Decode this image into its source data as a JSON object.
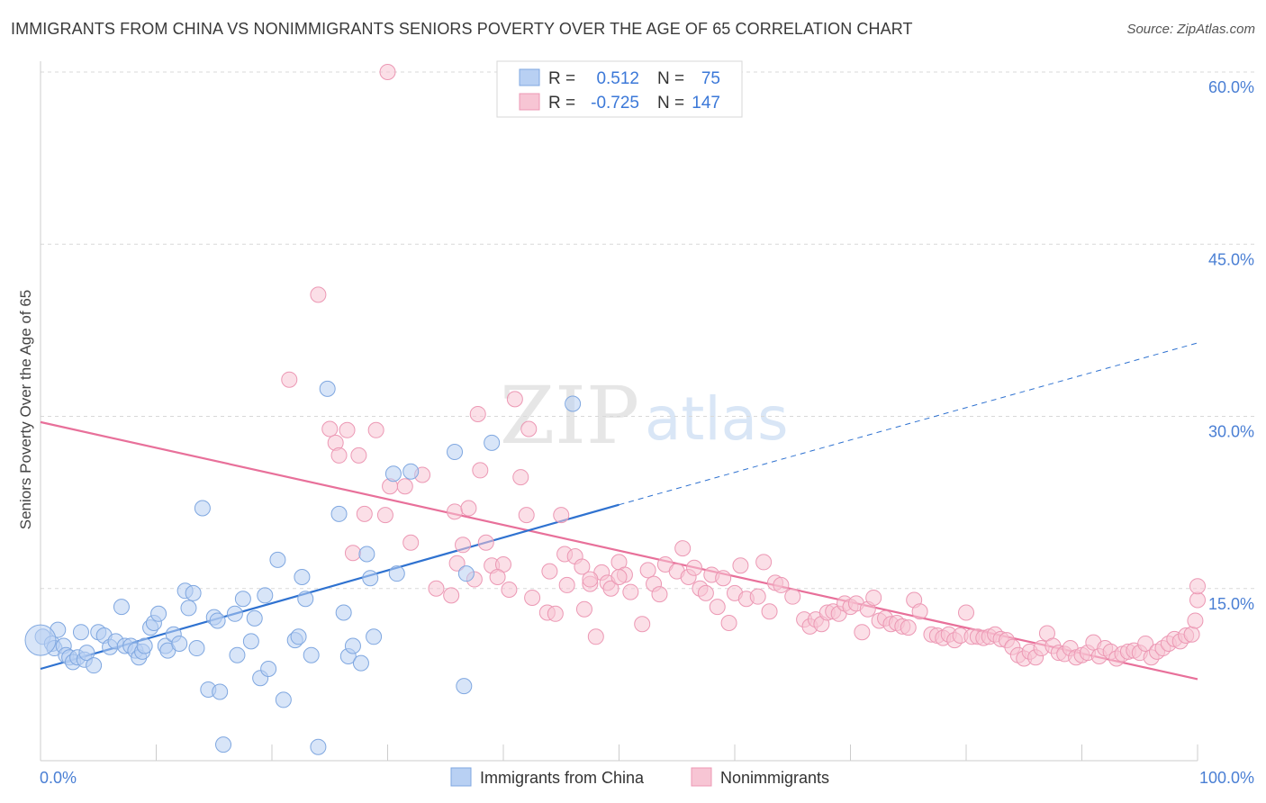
{
  "title": "IMMIGRANTS FROM CHINA VS NONIMMIGRANTS SENIORS POVERTY OVER THE AGE OF 65 CORRELATION CHART",
  "source": "Source: ZipAtlas.com",
  "watermark": {
    "zip": "ZIP",
    "atlas": "atlas"
  },
  "colors": {
    "blue_fill": "#b8d0f3",
    "blue_stroke": "#7fa7e0",
    "blue_line": "#2f72d0",
    "pink_fill": "#f7c5d4",
    "pink_stroke": "#ec98b4",
    "pink_line": "#e8709a",
    "axis_text": "#4a7fd4",
    "grid": "#d9d9d9"
  },
  "legend_top": {
    "rows": [
      {
        "r_label": "R =",
        "r_value": "0.512",
        "n_label": "N =",
        "n_value": "75",
        "color": "blue"
      },
      {
        "r_label": "R =",
        "r_value": "-0.725",
        "n_label": "N =",
        "n_value": "147",
        "color": "pink"
      }
    ]
  },
  "legend_bottom": [
    {
      "label": "Immigrants from China",
      "color": "blue"
    },
    {
      "label": "Nonimmigrants",
      "color": "pink"
    }
  ],
  "chart_data": {
    "type": "scatter",
    "title": "IMMIGRANTS FROM CHINA VS NONIMMIGRANTS SENIORS POVERTY OVER THE AGE OF 65 CORRELATION CHART",
    "xlabel": "",
    "ylabel": "Seniors Poverty Over the Age of 65",
    "xlim": [
      0,
      100
    ],
    "ylim": [
      0,
      60
    ],
    "x_tick_labels": [
      "0.0%",
      "100.0%"
    ],
    "y_ticks": [
      15,
      30,
      45,
      60
    ],
    "y_tick_labels": [
      "15.0%",
      "30.0%",
      "45.0%",
      "60.0%"
    ],
    "grid": true,
    "legend_position": "top-center",
    "series": [
      {
        "name": "Immigrants from China",
        "color": "blue",
        "trend": {
          "x": [
            0,
            50
          ],
          "y": [
            8.0,
            22.3
          ],
          "extended_to": [
            100,
            36.4
          ]
        },
        "points": [
          [
            0.2,
            10.8
          ],
          [
            1.0,
            10.2
          ],
          [
            1.2,
            9.8
          ],
          [
            1.5,
            11.4
          ],
          [
            2.0,
            10.0
          ],
          [
            2.2,
            9.2
          ],
          [
            2.5,
            9.0
          ],
          [
            2.8,
            8.6
          ],
          [
            3.2,
            9.0
          ],
          [
            3.5,
            11.2
          ],
          [
            3.8,
            8.8
          ],
          [
            4.0,
            9.4
          ],
          [
            4.6,
            8.3
          ],
          [
            5.0,
            11.2
          ],
          [
            5.5,
            10.9
          ],
          [
            6.0,
            9.9
          ],
          [
            6.5,
            10.4
          ],
          [
            7.0,
            13.4
          ],
          [
            7.3,
            10.0
          ],
          [
            7.8,
            10.0
          ],
          [
            8.2,
            9.6
          ],
          [
            8.5,
            9.0
          ],
          [
            8.8,
            9.5
          ],
          [
            9.0,
            10.0
          ],
          [
            9.5,
            11.6
          ],
          [
            9.8,
            12.0
          ],
          [
            10.2,
            12.8
          ],
          [
            10.8,
            10.0
          ],
          [
            11.0,
            9.6
          ],
          [
            11.5,
            11.0
          ],
          [
            12.0,
            10.2
          ],
          [
            12.5,
            14.8
          ],
          [
            12.8,
            13.3
          ],
          [
            13.2,
            14.6
          ],
          [
            13.5,
            9.8
          ],
          [
            14.0,
            22.0
          ],
          [
            14.5,
            6.2
          ],
          [
            15.0,
            12.5
          ],
          [
            15.3,
            12.2
          ],
          [
            15.5,
            6.0
          ],
          [
            15.8,
            1.4
          ],
          [
            16.8,
            12.8
          ],
          [
            17.0,
            9.2
          ],
          [
            17.5,
            14.1
          ],
          [
            18.2,
            10.4
          ],
          [
            18.5,
            12.4
          ],
          [
            19.0,
            7.2
          ],
          [
            19.4,
            14.4
          ],
          [
            19.7,
            8.0
          ],
          [
            20.5,
            17.5
          ],
          [
            21.0,
            5.3
          ],
          [
            22.0,
            10.5
          ],
          [
            22.3,
            10.8
          ],
          [
            22.6,
            16.0
          ],
          [
            22.9,
            14.1
          ],
          [
            23.4,
            9.2
          ],
          [
            24.0,
            1.2
          ],
          [
            24.8,
            32.4
          ],
          [
            25.8,
            21.5
          ],
          [
            26.2,
            12.9
          ],
          [
            26.6,
            9.1
          ],
          [
            27.0,
            10.0
          ],
          [
            27.7,
            8.5
          ],
          [
            28.2,
            18.0
          ],
          [
            28.5,
            15.9
          ],
          [
            28.8,
            10.8
          ],
          [
            30.5,
            25.0
          ],
          [
            30.8,
            16.3
          ],
          [
            32.0,
            25.2
          ],
          [
            35.8,
            26.9
          ],
          [
            36.8,
            16.3
          ],
          [
            36.6,
            6.5
          ],
          [
            39.0,
            27.7
          ],
          [
            46.0,
            31.1
          ],
          [
            0.0,
            10.5
          ]
        ]
      },
      {
        "name": "Nonimmigrants",
        "color": "pink",
        "trend": {
          "x": [
            0,
            100
          ],
          "y": [
            29.5,
            7.1
          ]
        },
        "points": [
          [
            30.0,
            60.0
          ],
          [
            24.0,
            40.6
          ],
          [
            21.5,
            33.2
          ],
          [
            25.0,
            28.9
          ],
          [
            26.5,
            28.8
          ],
          [
            29.0,
            28.8
          ],
          [
            25.5,
            27.7
          ],
          [
            25.8,
            26.6
          ],
          [
            27.5,
            26.6
          ],
          [
            37.8,
            30.2
          ],
          [
            41.0,
            31.5
          ],
          [
            42.2,
            28.9
          ],
          [
            33.0,
            24.9
          ],
          [
            31.5,
            23.9
          ],
          [
            38.0,
            25.3
          ],
          [
            41.5,
            24.7
          ],
          [
            28.0,
            21.5
          ],
          [
            29.8,
            21.4
          ],
          [
            35.8,
            21.7
          ],
          [
            42.0,
            21.4
          ],
          [
            45.0,
            21.4
          ],
          [
            27.0,
            18.1
          ],
          [
            34.2,
            15.0
          ],
          [
            35.5,
            14.4
          ],
          [
            36.5,
            18.8
          ],
          [
            37.5,
            15.8
          ],
          [
            38.5,
            19.0
          ],
          [
            39.0,
            17.0
          ],
          [
            40.0,
            17.1
          ],
          [
            39.5,
            16.0
          ],
          [
            42.5,
            14.2
          ],
          [
            43.8,
            12.9
          ],
          [
            44.5,
            12.8
          ],
          [
            45.3,
            18.0
          ],
          [
            45.5,
            15.3
          ],
          [
            46.2,
            17.8
          ],
          [
            46.8,
            16.9
          ],
          [
            47.5,
            15.4
          ],
          [
            48.0,
            10.8
          ],
          [
            48.5,
            16.4
          ],
          [
            49.0,
            15.5
          ],
          [
            49.3,
            15.0
          ],
          [
            50.0,
            17.3
          ],
          [
            50.5,
            16.2
          ],
          [
            51.0,
            14.7
          ],
          [
            52.0,
            11.9
          ],
          [
            52.5,
            16.6
          ],
          [
            53.0,
            15.4
          ],
          [
            53.5,
            14.5
          ],
          [
            54.0,
            17.1
          ],
          [
            55.0,
            16.5
          ],
          [
            55.5,
            18.5
          ],
          [
            56.0,
            16.0
          ],
          [
            56.5,
            16.8
          ],
          [
            57.0,
            15.0
          ],
          [
            57.5,
            14.6
          ],
          [
            58.0,
            16.2
          ],
          [
            58.5,
            13.4
          ],
          [
            59.0,
            15.9
          ],
          [
            59.5,
            12.0
          ],
          [
            60.0,
            14.6
          ],
          [
            60.5,
            17.0
          ],
          [
            61.0,
            14.1
          ],
          [
            62.0,
            14.3
          ],
          [
            62.5,
            17.3
          ],
          [
            63.0,
            13.0
          ],
          [
            63.5,
            15.5
          ],
          [
            64.0,
            15.3
          ],
          [
            65.0,
            14.3
          ],
          [
            66.0,
            12.3
          ],
          [
            66.5,
            11.7
          ],
          [
            67.0,
            12.3
          ],
          [
            67.5,
            11.9
          ],
          [
            68.0,
            12.9
          ],
          [
            68.5,
            13.0
          ],
          [
            69.0,
            12.8
          ],
          [
            69.5,
            13.7
          ],
          [
            70.0,
            13.4
          ],
          [
            70.5,
            13.7
          ],
          [
            71.0,
            11.2
          ],
          [
            71.5,
            13.2
          ],
          [
            72.0,
            14.2
          ],
          [
            72.5,
            12.2
          ],
          [
            73.0,
            12.4
          ],
          [
            73.5,
            11.9
          ],
          [
            74.0,
            12.0
          ],
          [
            74.5,
            11.7
          ],
          [
            75.0,
            11.6
          ],
          [
            75.5,
            14.0
          ],
          [
            76.0,
            13.0
          ],
          [
            77.0,
            11.0
          ],
          [
            77.5,
            10.9
          ],
          [
            78.0,
            10.7
          ],
          [
            78.5,
            11.0
          ],
          [
            79.0,
            10.5
          ],
          [
            79.5,
            10.9
          ],
          [
            80.0,
            12.9
          ],
          [
            80.5,
            10.8
          ],
          [
            81.0,
            10.8
          ],
          [
            81.5,
            10.7
          ],
          [
            82.0,
            10.8
          ],
          [
            82.5,
            11.0
          ],
          [
            83.0,
            10.6
          ],
          [
            83.5,
            10.5
          ],
          [
            84.0,
            9.9
          ],
          [
            84.5,
            9.2
          ],
          [
            85.0,
            8.9
          ],
          [
            85.5,
            9.5
          ],
          [
            86.0,
            9.0
          ],
          [
            86.5,
            9.8
          ],
          [
            87.0,
            11.1
          ],
          [
            87.5,
            10.0
          ],
          [
            88.0,
            9.4
          ],
          [
            88.5,
            9.3
          ],
          [
            89.0,
            9.8
          ],
          [
            89.5,
            9.0
          ],
          [
            90.0,
            9.2
          ],
          [
            90.5,
            9.4
          ],
          [
            91.0,
            10.3
          ],
          [
            91.5,
            9.1
          ],
          [
            92.0,
            9.8
          ],
          [
            92.5,
            9.5
          ],
          [
            93.0,
            8.9
          ],
          [
            93.5,
            9.3
          ],
          [
            94.0,
            9.5
          ],
          [
            94.5,
            9.6
          ],
          [
            95.0,
            9.4
          ],
          [
            95.5,
            10.2
          ],
          [
            96.0,
            9.0
          ],
          [
            96.5,
            9.5
          ],
          [
            97.0,
            9.8
          ],
          [
            97.5,
            10.2
          ],
          [
            98.0,
            10.6
          ],
          [
            98.5,
            10.4
          ],
          [
            99.0,
            10.9
          ],
          [
            99.5,
            11.0
          ],
          [
            99.8,
            12.2
          ],
          [
            100.0,
            14.0
          ],
          [
            100.0,
            15.2
          ],
          [
            36.0,
            17.2
          ],
          [
            40.5,
            14.9
          ],
          [
            44.0,
            16.5
          ],
          [
            47.0,
            13.2
          ],
          [
            47.5,
            15.8
          ],
          [
            30.2,
            23.9
          ],
          [
            32.0,
            19.0
          ],
          [
            37.0,
            22.0
          ],
          [
            50.0,
            16.0
          ]
        ]
      }
    ]
  }
}
